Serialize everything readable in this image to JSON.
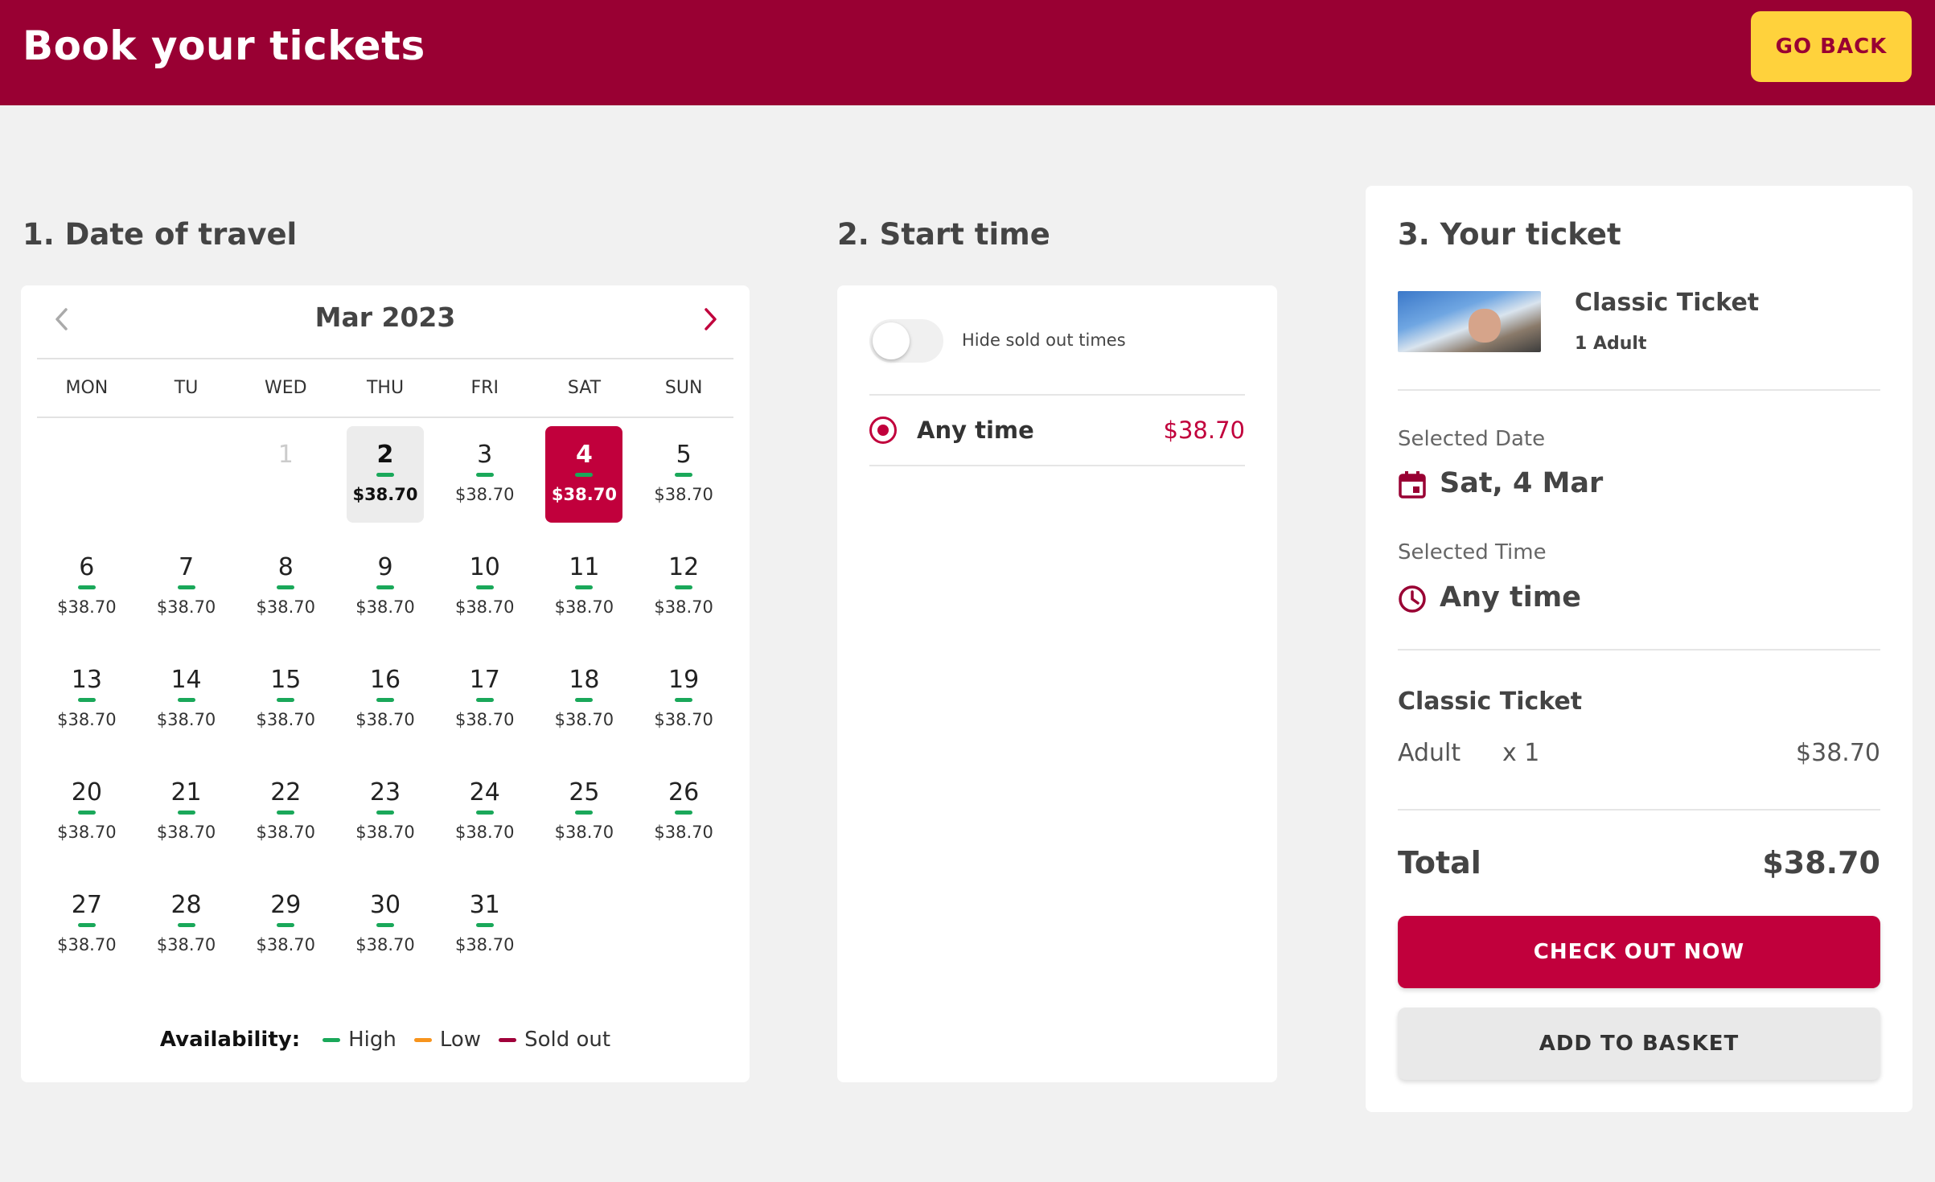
{
  "header": {
    "title": "Book your tickets",
    "go_back_label": "GO BACK"
  },
  "colors": {
    "brand": "#990033",
    "accent": "#c1003c",
    "button_yellow": "#ffd23c",
    "availability_high": "#1aa85a",
    "availability_low": "#f7941d",
    "availability_sold_out": "#a0003a"
  },
  "date_section": {
    "heading": "1. Date of travel",
    "month": "Mar 2023",
    "prev_icon": "chevron-left-icon",
    "next_icon": "chevron-right-icon",
    "weekdays": [
      "MON",
      "TU",
      "WED",
      "THU",
      "FRI",
      "SAT",
      "SUN"
    ],
    "days": [
      {
        "num": "",
        "price": "",
        "state": "empty"
      },
      {
        "num": "",
        "price": "",
        "state": "empty"
      },
      {
        "num": "1",
        "price": "",
        "state": "muted"
      },
      {
        "num": "2",
        "price": "$38.70",
        "state": "today"
      },
      {
        "num": "3",
        "price": "$38.70",
        "state": "normal"
      },
      {
        "num": "4",
        "price": "$38.70",
        "state": "selected"
      },
      {
        "num": "5",
        "price": "$38.70",
        "state": "normal"
      },
      {
        "num": "6",
        "price": "$38.70",
        "state": "normal"
      },
      {
        "num": "7",
        "price": "$38.70",
        "state": "normal"
      },
      {
        "num": "8",
        "price": "$38.70",
        "state": "normal"
      },
      {
        "num": "9",
        "price": "$38.70",
        "state": "normal"
      },
      {
        "num": "10",
        "price": "$38.70",
        "state": "normal"
      },
      {
        "num": "11",
        "price": "$38.70",
        "state": "normal"
      },
      {
        "num": "12",
        "price": "$38.70",
        "state": "normal"
      },
      {
        "num": "13",
        "price": "$38.70",
        "state": "normal"
      },
      {
        "num": "14",
        "price": "$38.70",
        "state": "normal"
      },
      {
        "num": "15",
        "price": "$38.70",
        "state": "normal"
      },
      {
        "num": "16",
        "price": "$38.70",
        "state": "normal"
      },
      {
        "num": "17",
        "price": "$38.70",
        "state": "normal"
      },
      {
        "num": "18",
        "price": "$38.70",
        "state": "normal"
      },
      {
        "num": "19",
        "price": "$38.70",
        "state": "normal"
      },
      {
        "num": "20",
        "price": "$38.70",
        "state": "normal"
      },
      {
        "num": "21",
        "price": "$38.70",
        "state": "normal"
      },
      {
        "num": "22",
        "price": "$38.70",
        "state": "normal"
      },
      {
        "num": "23",
        "price": "$38.70",
        "state": "normal"
      },
      {
        "num": "24",
        "price": "$38.70",
        "state": "normal"
      },
      {
        "num": "25",
        "price": "$38.70",
        "state": "normal"
      },
      {
        "num": "26",
        "price": "$38.70",
        "state": "normal"
      },
      {
        "num": "27",
        "price": "$38.70",
        "state": "normal"
      },
      {
        "num": "28",
        "price": "$38.70",
        "state": "normal"
      },
      {
        "num": "29",
        "price": "$38.70",
        "state": "normal"
      },
      {
        "num": "30",
        "price": "$38.70",
        "state": "normal"
      },
      {
        "num": "31",
        "price": "$38.70",
        "state": "normal"
      }
    ],
    "legend": {
      "title": "Availability:",
      "items": [
        {
          "label": "High",
          "color": "#1aa85a"
        },
        {
          "label": "Low",
          "color": "#f7941d"
        },
        {
          "label": "Sold out",
          "color": "#a0003a"
        }
      ]
    }
  },
  "time_section": {
    "heading": "2. Start time",
    "toggle_label": "Hide sold out times",
    "options": [
      {
        "label": "Any time",
        "price": "$38.70",
        "selected": true
      }
    ]
  },
  "ticket_section": {
    "heading": "3. Your ticket",
    "ticket_name": "Classic Ticket",
    "ticket_qty": "1 Adult",
    "selected_date_label": "Selected Date",
    "selected_date_value": "Sat, 4 Mar",
    "selected_time_label": "Selected Time",
    "selected_time_value": "Any time",
    "summary": {
      "name": "Classic Ticket",
      "type": "Adult",
      "count": "x 1",
      "price": "$38.70"
    },
    "total_label": "Total",
    "total_value": "$38.70",
    "checkout_label": "CHECK OUT NOW",
    "basket_label": "ADD TO BASKET"
  }
}
